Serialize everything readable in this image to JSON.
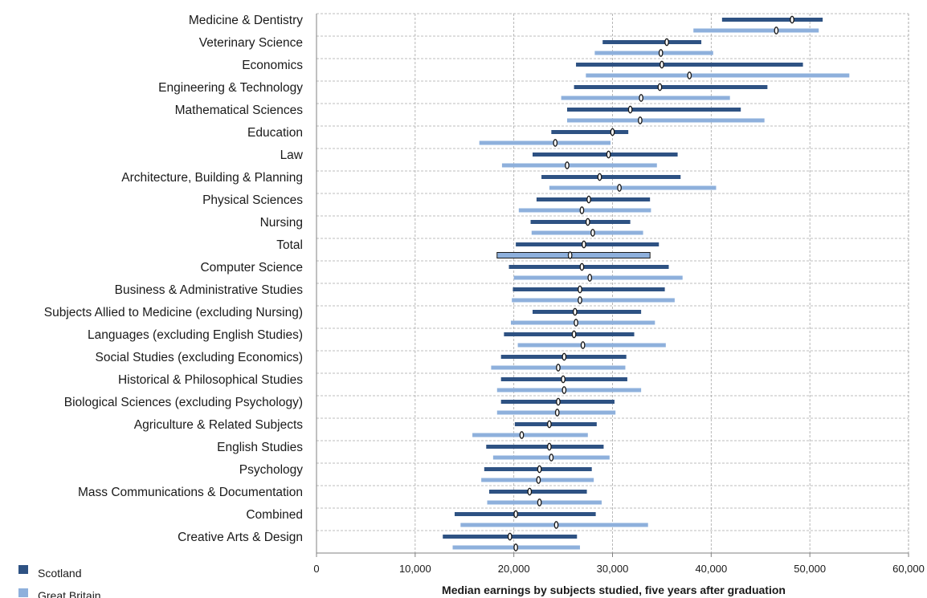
{
  "chart_data": {
    "type": "range",
    "xlabel": "Median earnings by subjects studied, five years after graduation",
    "xlim": [
      0,
      60000
    ],
    "xticks": [
      0,
      10000,
      20000,
      30000,
      40000,
      50000,
      60000
    ],
    "xtick_labels": [
      "0",
      "10,000",
      "20,000",
      "30,000",
      "40,000",
      "50,000",
      "60,000"
    ],
    "grid": true,
    "legend_position": "bottom-left",
    "highlight_category": "Total",
    "categories": [
      "Medicine & Dentistry",
      "Veterinary Science",
      "Economics",
      "Engineering & Technology",
      "Mathematical Sciences",
      "Education",
      "Law",
      "Architecture, Building & Planning",
      "Physical Sciences",
      "Nursing",
      "Total",
      "Computer Science",
      "Business & Administrative Studies",
      "Subjects Allied to Medicine (excluding Nursing)",
      "Languages (excluding English Studies)",
      "Social Studies (excluding Economics)",
      "Historical & Philosophical Studies",
      "Biological Sciences (excluding Psychology)",
      "Agriculture & Related Subjects",
      "English Studies",
      "Psychology",
      "Mass Communications & Documentation",
      "Combined",
      "Creative Arts & Design"
    ],
    "series": [
      {
        "name": "Scotland",
        "color": "#2e5283",
        "low": [
          41100,
          29000,
          26300,
          26100,
          25400,
          23800,
          21900,
          22800,
          22300,
          21700,
          20200,
          19500,
          19900,
          21900,
          19000,
          18700,
          18700,
          18700,
          20100,
          17200,
          17000,
          17500,
          14000,
          12800
        ],
        "median": [
          48200,
          35500,
          35000,
          34800,
          31800,
          30000,
          29600,
          28700,
          27600,
          27500,
          27100,
          26900,
          26700,
          26200,
          26100,
          25100,
          25000,
          24500,
          23600,
          23600,
          22600,
          21600,
          20200,
          19600
        ],
        "high": [
          51300,
          39000,
          49300,
          45700,
          43000,
          31600,
          36600,
          36900,
          33800,
          31800,
          34700,
          35700,
          35300,
          32900,
          32200,
          31400,
          31500,
          30200,
          28400,
          29100,
          27900,
          27400,
          28300,
          26400
        ]
      },
      {
        "name": "Great Britain",
        "color": "#8eb0dc",
        "low": [
          38200,
          28200,
          27300,
          24800,
          25400,
          16500,
          18800,
          23600,
          20500,
          21800,
          18300,
          20000,
          19800,
          19700,
          20400,
          17700,
          18300,
          18300,
          15800,
          17900,
          16700,
          17300,
          14600,
          13800
        ],
        "median": [
          46600,
          34900,
          37800,
          32900,
          32800,
          24200,
          25400,
          30700,
          26900,
          28000,
          25700,
          27700,
          26700,
          26300,
          27000,
          24500,
          25100,
          24400,
          20800,
          23800,
          22500,
          22600,
          24300,
          20200
        ],
        "high": [
          50900,
          40200,
          54000,
          41900,
          45400,
          29800,
          34500,
          40500,
          33900,
          33100,
          33800,
          37100,
          36300,
          34300,
          35400,
          31300,
          32900,
          30300,
          27500,
          29700,
          28100,
          28900,
          33600,
          26700
        ]
      }
    ]
  }
}
